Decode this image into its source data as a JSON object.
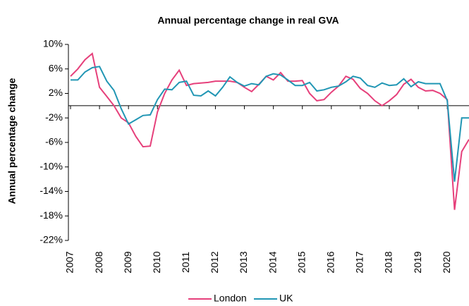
{
  "chart_data": {
    "type": "line",
    "title": "Annual percentage change in real GVA",
    "y_label": "Annual percentage change",
    "x": [
      2007,
      2007.25,
      2007.5,
      2007.75,
      2008,
      2008.25,
      2008.5,
      2008.75,
      2009,
      2009.25,
      2009.5,
      2009.75,
      2010,
      2010.25,
      2010.5,
      2010.75,
      2011,
      2011.25,
      2011.5,
      2011.75,
      2012,
      2012.25,
      2012.5,
      2012.75,
      2013,
      2013.25,
      2013.5,
      2013.75,
      2014,
      2014.25,
      2014.5,
      2014.75,
      2015,
      2015.25,
      2015.5,
      2015.75,
      2016,
      2016.25,
      2016.5,
      2016.75,
      2017,
      2017.25,
      2017.5,
      2017.75,
      2018,
      2018.25,
      2018.5,
      2018.75,
      2019,
      2019.25,
      2019.5,
      2019.75,
      2020,
      2020.25,
      2020.5,
      2020.75
    ],
    "series": [
      {
        "name": "London",
        "color": "#e6407b",
        "values": [
          4.8,
          6.0,
          7.5,
          8.5,
          3.0,
          1.5,
          0,
          -2,
          -2.8,
          -5,
          -6.7,
          -6.6,
          -1,
          2,
          4.2,
          5.8,
          3.3,
          3.6,
          3.7,
          3.8,
          4.0,
          4.0,
          4.0,
          3.8,
          3.0,
          2.3,
          3.5,
          4.8,
          4.2,
          5.4,
          4.0,
          4.0,
          4.1,
          2.0,
          0.8,
          1.0,
          2.2,
          3.2,
          4.8,
          4.3,
          2.8,
          2.0,
          0.8,
          0,
          0.8,
          1.8,
          3.5,
          4.3,
          3.0,
          2.4,
          2.5,
          2.0,
          1.0,
          -17,
          -7.5,
          -5.5
        ]
      },
      {
        "name": "UK",
        "color": "#2196b4",
        "values": [
          4.2,
          4.2,
          5.5,
          6.2,
          6.4,
          4.0,
          2.5,
          -0.5,
          -3,
          -2.3,
          -1.6,
          -1.5,
          1,
          2.7,
          2.6,
          3.8,
          4.0,
          1.7,
          1.6,
          2.4,
          1.6,
          3.0,
          4.7,
          3.8,
          3.2,
          3.6,
          3.4,
          4.8,
          5.2,
          5.0,
          4.2,
          3.3,
          3.3,
          3.8,
          2.4,
          2.6,
          3.0,
          3.2,
          3.9,
          4.8,
          4.5,
          3.3,
          3.0,
          3.7,
          3.3,
          3.4,
          4.4,
          3.1,
          3.9,
          3.6,
          3.6,
          3.6,
          0.8,
          -12.4,
          -2,
          -2
        ]
      }
    ],
    "xlim": [
      2007,
      2020.75
    ],
    "xticks": [
      2007,
      2008,
      2009,
      2010,
      2011,
      2012,
      2013,
      2014,
      2015,
      2016,
      2017,
      2018,
      2019,
      2020
    ],
    "ylim": [
      -22,
      10
    ],
    "yticks": [
      {
        "value": -22,
        "label": "-22%"
      },
      {
        "value": -18,
        "label": "-18%"
      },
      {
        "value": -14,
        "label": "-14%"
      },
      {
        "value": -10,
        "label": "-10%"
      },
      {
        "value": -6,
        "label": "-6%"
      },
      {
        "value": -2,
        "label": "-2%"
      },
      {
        "value": 2,
        "label": "2%"
      },
      {
        "value": 6,
        "label": "6%"
      },
      {
        "value": 10,
        "label": "10%"
      }
    ]
  }
}
